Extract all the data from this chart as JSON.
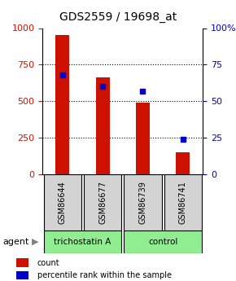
{
  "title": "GDS2559 / 19698_at",
  "samples": [
    "GSM86644",
    "GSM86677",
    "GSM86739",
    "GSM86741"
  ],
  "counts": [
    950,
    660,
    490,
    150
  ],
  "percentiles": [
    68,
    60,
    57,
    24
  ],
  "agents": [
    "trichostatin A",
    "trichostatin A",
    "control",
    "control"
  ],
  "agent_labels": [
    "trichostatin A",
    "control"
  ],
  "agent_colors": [
    "#90EE90",
    "#90EE90"
  ],
  "bar_color": "#CC1100",
  "dot_color": "#0000CC",
  "ylim_left": [
    0,
    1000
  ],
  "ylim_right": [
    0,
    100
  ],
  "yticks_left": [
    0,
    250,
    500,
    750,
    1000
  ],
  "yticks_right": [
    0,
    25,
    50,
    75,
    100
  ],
  "grid_color": "#000000",
  "sample_box_color": "#D3D3D3",
  "bg_color": "#FFFFFF",
  "bar_width": 0.35
}
